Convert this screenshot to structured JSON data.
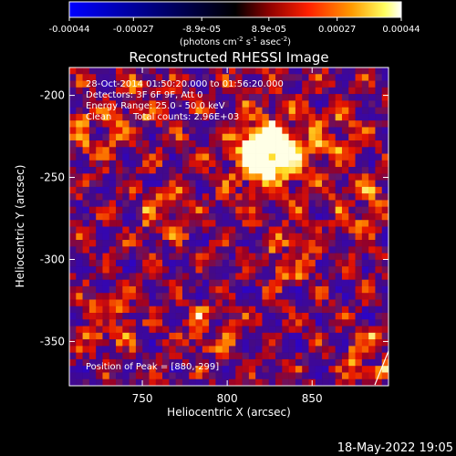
{
  "colorbar": {
    "tick_labels": [
      "-0.00044",
      "-0.00027",
      "-8.9e-05",
      "8.9e-05",
      "0.00027",
      "0.00044"
    ],
    "tick_values": [
      -0.00044,
      -0.00027,
      -8.9e-05,
      8.9e-05,
      0.00027,
      0.00044
    ],
    "range": [
      -0.00044,
      0.00044
    ],
    "units_line1": "(photons cm",
    "units_sup1": "-2",
    "units_mid": " s",
    "units_sup2": "-1",
    "units_end": " asec",
    "units_sup3": "-2",
    "units_close": ")"
  },
  "chart_data": {
    "type": "heatmap",
    "title": "Reconstructed RHESSI Image",
    "xlabel": "Heliocentric X (arcsec)",
    "ylabel": "Heliocentric Y (arcsec)",
    "xlim": [
      707,
      895
    ],
    "ylim": [
      -377,
      -183
    ],
    "x_ticks": [
      750,
      800,
      850
    ],
    "y_ticks": [
      -200,
      -250,
      -300,
      -350
    ],
    "colormap": "red-temperature (blue for negative values)",
    "peak": [
      880,
      -299
    ]
  },
  "annotations": {
    "time_range": "28-Oct-2014 01:50:20.000 to 01:56:20.000",
    "detectors": "Detectors: 3F 6F 9F, Att 0",
    "energy": "Energy Range: 25.0 - 50.0 keV",
    "method": "Clean",
    "counts": "Total counts: 2.96E+03",
    "peak_text": "Position of Peak = [880,-299]"
  },
  "footer": {
    "timestamp": "18-May-2022 19:05"
  }
}
